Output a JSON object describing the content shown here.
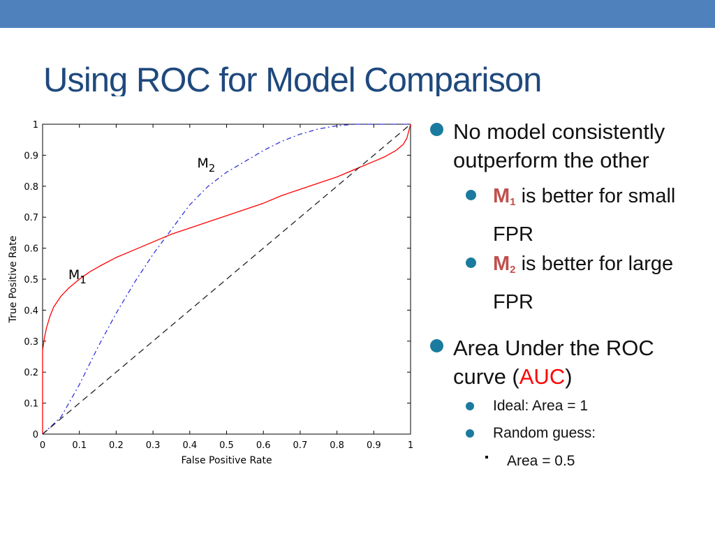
{
  "slide": {
    "title": "Using ROC for Model Comparison",
    "accent_color": "#4f81bd",
    "title_color": "#1f497d",
    "bullet_color": "#1a7b9e"
  },
  "bullets": {
    "b1_text": "No model consistently outperform the other",
    "m1_prefix": "M",
    "m1_sub": "1",
    "m1_text": " is better for small FPR",
    "m2_prefix": "M",
    "m2_sub": "2",
    "m2_text": " is better for large FPR",
    "b2_pre": "Area Under the ROC curve (",
    "b2_auc": "AUC",
    "b2_post": ")",
    "ideal": "Ideal:  Area = 1",
    "random": "Random guess:",
    "random_area": "Area = 0.5"
  },
  "chart_data": {
    "type": "line",
    "title": "",
    "xlabel": "False Positive Rate",
    "ylabel": "True Positive Rate",
    "xlim": [
      0,
      1
    ],
    "ylim": [
      0,
      1
    ],
    "xticks": [
      "0",
      "0.1",
      "0.2",
      "0.3",
      "0.4",
      "0.5",
      "0.6",
      "0.7",
      "0.8",
      "0.9",
      "1"
    ],
    "yticks": [
      "0",
      "0.1",
      "0.2",
      "0.3",
      "0.4",
      "0.5",
      "0.6",
      "0.7",
      "0.8",
      "0.9",
      "1"
    ],
    "grid": false,
    "series": [
      {
        "name": "M1",
        "label_main": "M",
        "label_sub": "1",
        "label_at": [
          0.07,
          0.5
        ],
        "color": "#ff0000",
        "style": "solid",
        "x": [
          0,
          0.0,
          0.005,
          0.01,
          0.02,
          0.03,
          0.05,
          0.07,
          0.1,
          0.13,
          0.16,
          0.2,
          0.25,
          0.3,
          0.35,
          0.4,
          0.45,
          0.5,
          0.55,
          0.6,
          0.65,
          0.7,
          0.75,
          0.8,
          0.85,
          0.9,
          0.93,
          0.96,
          0.98,
          0.99,
          1.0
        ],
        "y": [
          0,
          0.27,
          0.31,
          0.34,
          0.38,
          0.41,
          0.445,
          0.47,
          0.5,
          0.525,
          0.545,
          0.57,
          0.595,
          0.62,
          0.645,
          0.665,
          0.685,
          0.705,
          0.725,
          0.745,
          0.77,
          0.79,
          0.81,
          0.83,
          0.855,
          0.88,
          0.895,
          0.915,
          0.935,
          0.955,
          1.0
        ]
      },
      {
        "name": "M2",
        "label_main": "M",
        "label_sub": "2",
        "label_at": [
          0.42,
          0.86
        ],
        "color": "#3333dd",
        "style": "dashdot",
        "x": [
          0,
          0.05,
          0.1,
          0.15,
          0.2,
          0.25,
          0.3,
          0.35,
          0.4,
          0.45,
          0.5,
          0.55,
          0.6,
          0.65,
          0.7,
          0.75,
          0.8,
          0.85,
          0.9,
          0.95,
          1.0
        ],
        "y": [
          0,
          0.055,
          0.16,
          0.28,
          0.39,
          0.49,
          0.58,
          0.66,
          0.74,
          0.8,
          0.845,
          0.88,
          0.915,
          0.945,
          0.968,
          0.985,
          0.995,
          1.0,
          1.0,
          1.0,
          1.0
        ]
      },
      {
        "name": "Random",
        "color": "#222222",
        "style": "dashed",
        "x": [
          0,
          1
        ],
        "y": [
          0,
          1
        ]
      }
    ]
  }
}
